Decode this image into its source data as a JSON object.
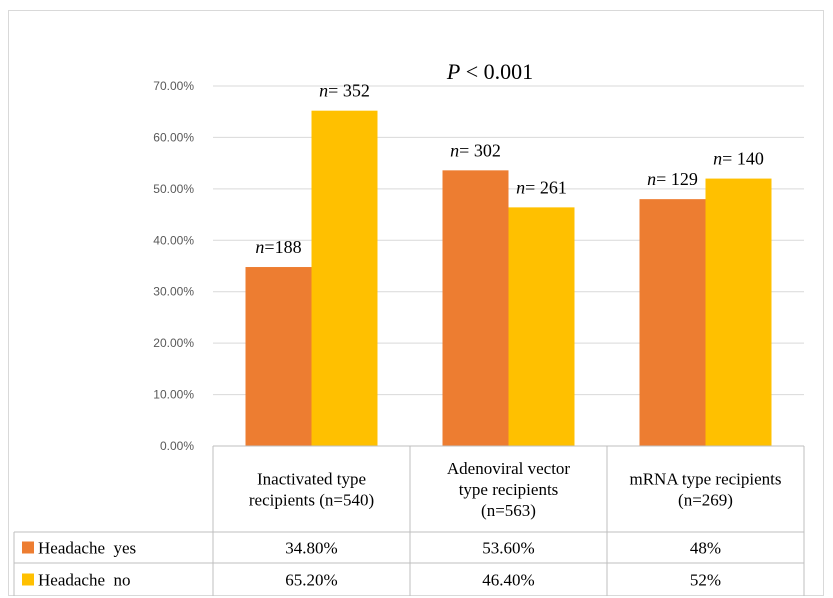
{
  "chart_data": {
    "type": "bar",
    "annotation": {
      "prefix": "P",
      "rest": " < 0.001"
    },
    "ylim": [
      0,
      70
    ],
    "yticks": [
      "0.00%",
      "10.00%",
      "20.00%",
      "30.00%",
      "40.00%",
      "50.00%",
      "60.00%",
      "70.00%"
    ],
    "grid": true,
    "categories": [
      [
        "Inactivated type",
        "recipients (n=540)"
      ],
      [
        "Adenoviral vector",
        "type recipients",
        "(n=563)"
      ],
      [
        "mRNA type recipients",
        "(n=269)"
      ]
    ],
    "series": [
      {
        "name": "Headache  yes",
        "color": "#ED7D31",
        "values": [
          34.8,
          53.6,
          48
        ],
        "table_values": [
          "34.80%",
          "53.60%",
          "48%"
        ],
        "n_labels": [
          {
            "n": "n",
            "text": "=188"
          },
          {
            "n": "n",
            "text": "= 302"
          },
          {
            "n": "n",
            "text": "= 129"
          }
        ]
      },
      {
        "name": "Headache  no",
        "color": "#FFC000",
        "values": [
          65.2,
          46.4,
          52
        ],
        "table_values": [
          "65.20%",
          "46.40%",
          "52%"
        ],
        "n_labels": [
          {
            "n": "n",
            "text": "= 352"
          },
          {
            "n": "n",
            "text": "= 261"
          },
          {
            "n": "n",
            "text": "= 140"
          }
        ]
      }
    ]
  }
}
